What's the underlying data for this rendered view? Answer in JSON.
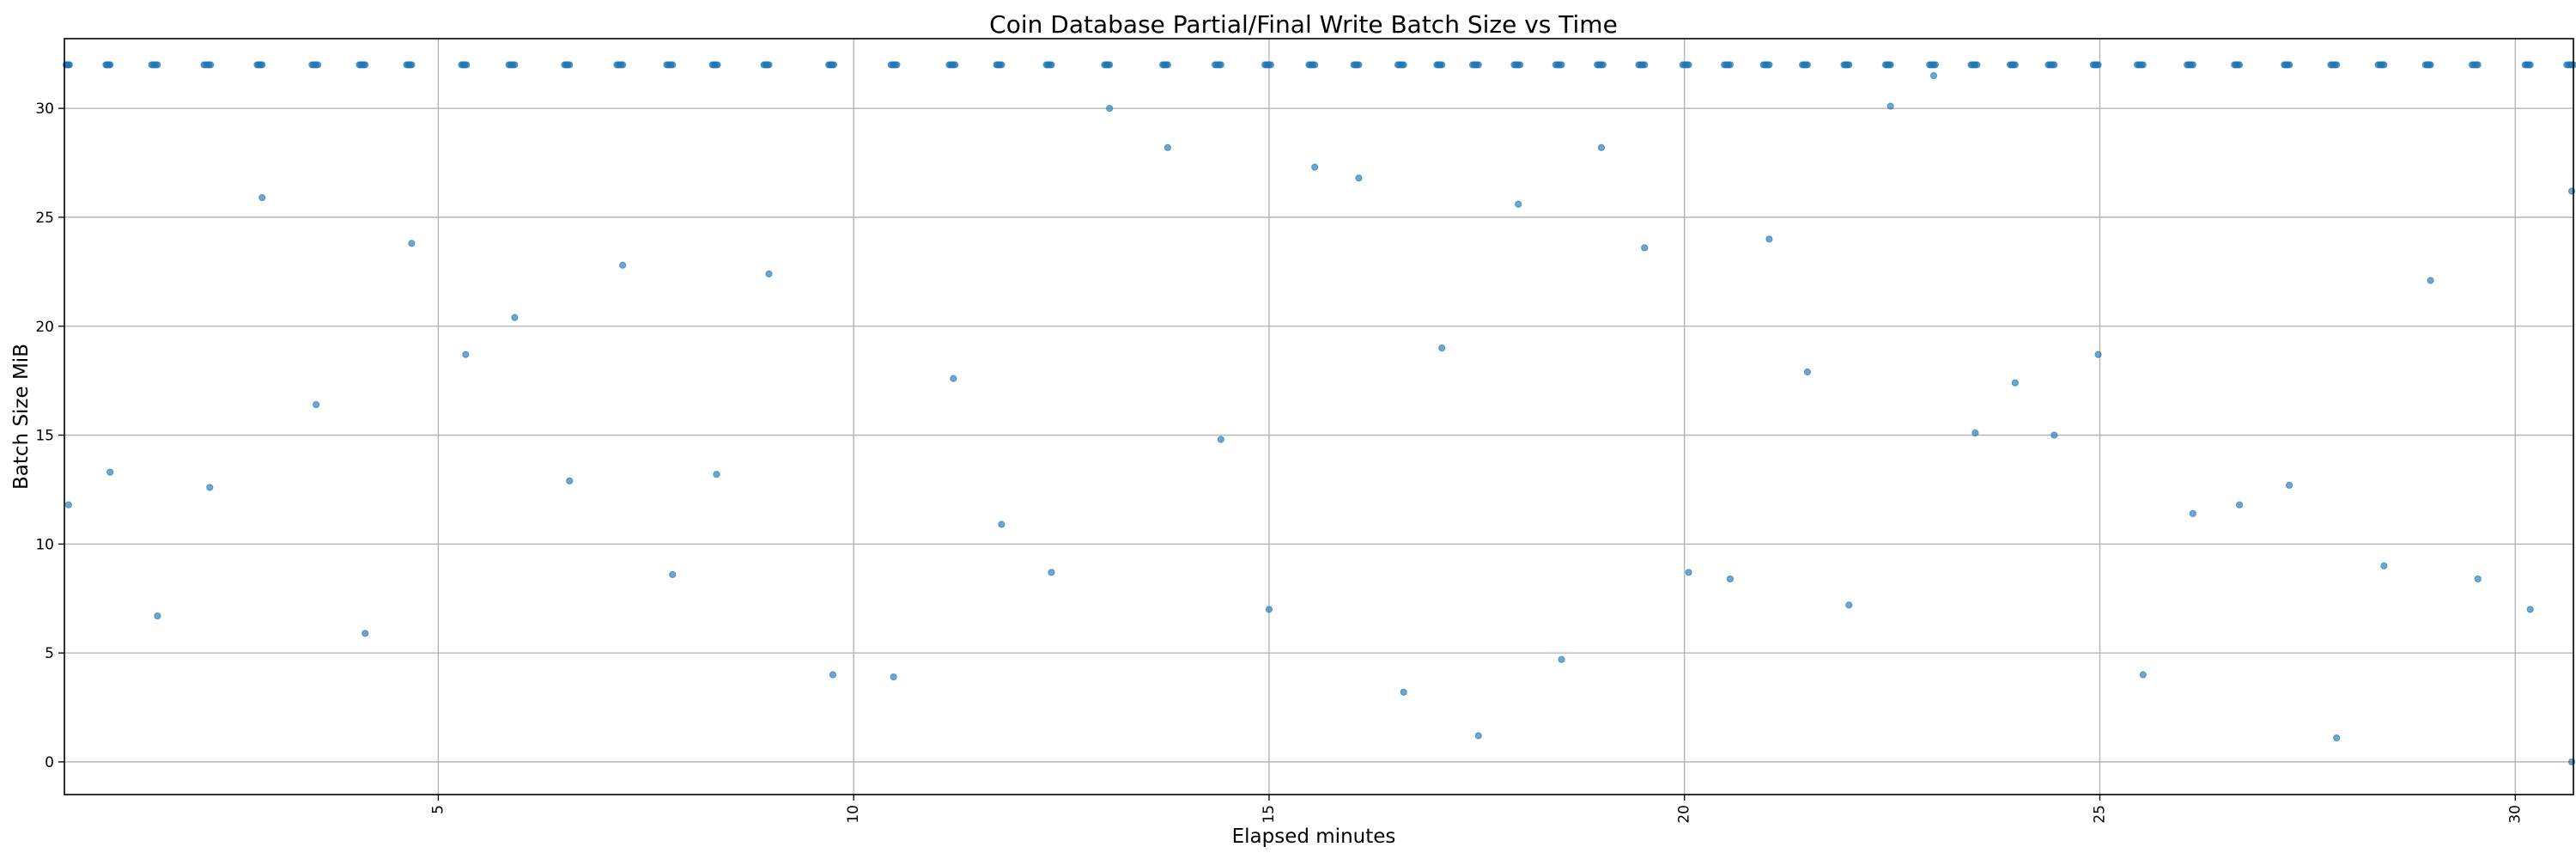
{
  "chart_data": {
    "type": "scatter",
    "title": "Coin Database Partial/Final Write Batch Size vs Time",
    "xlabel": "Elapsed minutes",
    "ylabel": "Batch Size MiB",
    "xlim": [
      0.5,
      30.7
    ],
    "ylim": [
      -1.5,
      33.2
    ],
    "xticks": [
      5,
      10,
      15,
      20,
      25,
      30
    ],
    "yticks": [
      0,
      5,
      10,
      15,
      20,
      25,
      30
    ],
    "grid": true,
    "legend": "none",
    "color": "#1f77b4",
    "full_batch_mib": 32,
    "full_batch_clusters": [
      [
        0.52,
        0.56
      ],
      [
        1.0,
        1.05
      ],
      [
        1.55,
        1.62
      ],
      [
        2.18,
        2.26
      ],
      [
        2.82,
        2.88
      ],
      [
        3.48,
        3.55
      ],
      [
        4.05,
        4.12
      ],
      [
        4.62,
        4.68
      ],
      [
        5.28,
        5.34
      ],
      [
        5.85,
        5.92
      ],
      [
        6.52,
        6.58
      ],
      [
        7.15,
        7.22
      ],
      [
        7.75,
        7.82
      ],
      [
        8.3,
        8.36
      ],
      [
        8.92,
        8.98
      ],
      [
        9.7,
        9.76
      ],
      [
        10.45,
        10.52
      ],
      [
        11.15,
        11.22
      ],
      [
        11.72,
        11.78
      ],
      [
        12.32,
        12.38
      ],
      [
        13.02,
        13.08
      ],
      [
        13.72,
        13.78
      ],
      [
        14.35,
        14.42
      ],
      [
        14.95,
        15.02
      ],
      [
        15.48,
        15.55
      ],
      [
        16.02,
        16.08
      ],
      [
        16.55,
        16.62
      ],
      [
        17.02,
        17.08
      ],
      [
        17.45,
        17.52
      ],
      [
        17.95,
        18.02
      ],
      [
        18.45,
        18.52
      ],
      [
        18.95,
        19.02
      ],
      [
        19.45,
        19.52
      ],
      [
        19.98,
        20.05
      ],
      [
        20.48,
        20.55
      ],
      [
        20.95,
        21.02
      ],
      [
        21.42,
        21.48
      ],
      [
        21.92,
        21.98
      ],
      [
        22.42,
        22.48
      ],
      [
        22.95,
        23.02
      ],
      [
        23.45,
        23.52
      ],
      [
        23.92,
        23.98
      ],
      [
        24.38,
        24.45
      ],
      [
        24.92,
        24.98
      ],
      [
        25.45,
        25.52
      ],
      [
        26.05,
        26.12
      ],
      [
        26.62,
        26.68
      ],
      [
        27.22,
        27.28
      ],
      [
        27.78,
        27.85
      ],
      [
        28.35,
        28.42
      ],
      [
        28.92,
        28.98
      ],
      [
        29.48,
        29.55
      ],
      [
        30.12,
        30.18
      ],
      [
        30.62,
        30.7
      ]
    ],
    "partial_batches": [
      {
        "x": 0.55,
        "y": 11.8
      },
      {
        "x": 1.05,
        "y": 13.3
      },
      {
        "x": 1.62,
        "y": 6.7
      },
      {
        "x": 2.25,
        "y": 12.6
      },
      {
        "x": 2.88,
        "y": 25.9
      },
      {
        "x": 3.53,
        "y": 16.4
      },
      {
        "x": 4.12,
        "y": 5.9
      },
      {
        "x": 4.68,
        "y": 23.8
      },
      {
        "x": 5.33,
        "y": 18.7
      },
      {
        "x": 5.92,
        "y": 20.4
      },
      {
        "x": 6.58,
        "y": 12.9
      },
      {
        "x": 7.22,
        "y": 22.8
      },
      {
        "x": 7.82,
        "y": 8.6
      },
      {
        "x": 8.35,
        "y": 13.2
      },
      {
        "x": 8.98,
        "y": 22.4
      },
      {
        "x": 9.75,
        "y": 4.0
      },
      {
        "x": 10.48,
        "y": 3.9
      },
      {
        "x": 11.2,
        "y": 17.6
      },
      {
        "x": 11.78,
        "y": 10.9
      },
      {
        "x": 12.38,
        "y": 8.7
      },
      {
        "x": 13.08,
        "y": 30.0
      },
      {
        "x": 13.78,
        "y": 28.2
      },
      {
        "x": 14.42,
        "y": 14.8
      },
      {
        "x": 15.0,
        "y": 7.0
      },
      {
        "x": 15.55,
        "y": 27.3
      },
      {
        "x": 16.08,
        "y": 26.8
      },
      {
        "x": 16.62,
        "y": 3.2
      },
      {
        "x": 17.08,
        "y": 19.0
      },
      {
        "x": 17.52,
        "y": 1.2
      },
      {
        "x": 18.0,
        "y": 25.6
      },
      {
        "x": 18.52,
        "y": 4.7
      },
      {
        "x": 19.0,
        "y": 28.2
      },
      {
        "x": 19.52,
        "y": 23.6
      },
      {
        "x": 20.05,
        "y": 8.7
      },
      {
        "x": 20.55,
        "y": 8.4
      },
      {
        "x": 21.02,
        "y": 24.0
      },
      {
        "x": 21.48,
        "y": 17.9
      },
      {
        "x": 21.98,
        "y": 7.2
      },
      {
        "x": 22.48,
        "y": 30.1
      },
      {
        "x": 23.0,
        "y": 31.5
      },
      {
        "x": 23.5,
        "y": 15.1
      },
      {
        "x": 23.98,
        "y": 17.4
      },
      {
        "x": 24.45,
        "y": 15.0
      },
      {
        "x": 24.98,
        "y": 18.7
      },
      {
        "x": 25.52,
        "y": 4.0
      },
      {
        "x": 26.12,
        "y": 11.4
      },
      {
        "x": 26.68,
        "y": 11.8
      },
      {
        "x": 27.28,
        "y": 12.7
      },
      {
        "x": 27.85,
        "y": 1.1
      },
      {
        "x": 28.42,
        "y": 9.0
      },
      {
        "x": 28.98,
        "y": 22.1
      },
      {
        "x": 29.55,
        "y": 8.4
      },
      {
        "x": 30.18,
        "y": 7.0
      },
      {
        "x": 30.68,
        "y": 26.2
      },
      {
        "x": 30.68,
        "y": 0.0
      }
    ]
  }
}
